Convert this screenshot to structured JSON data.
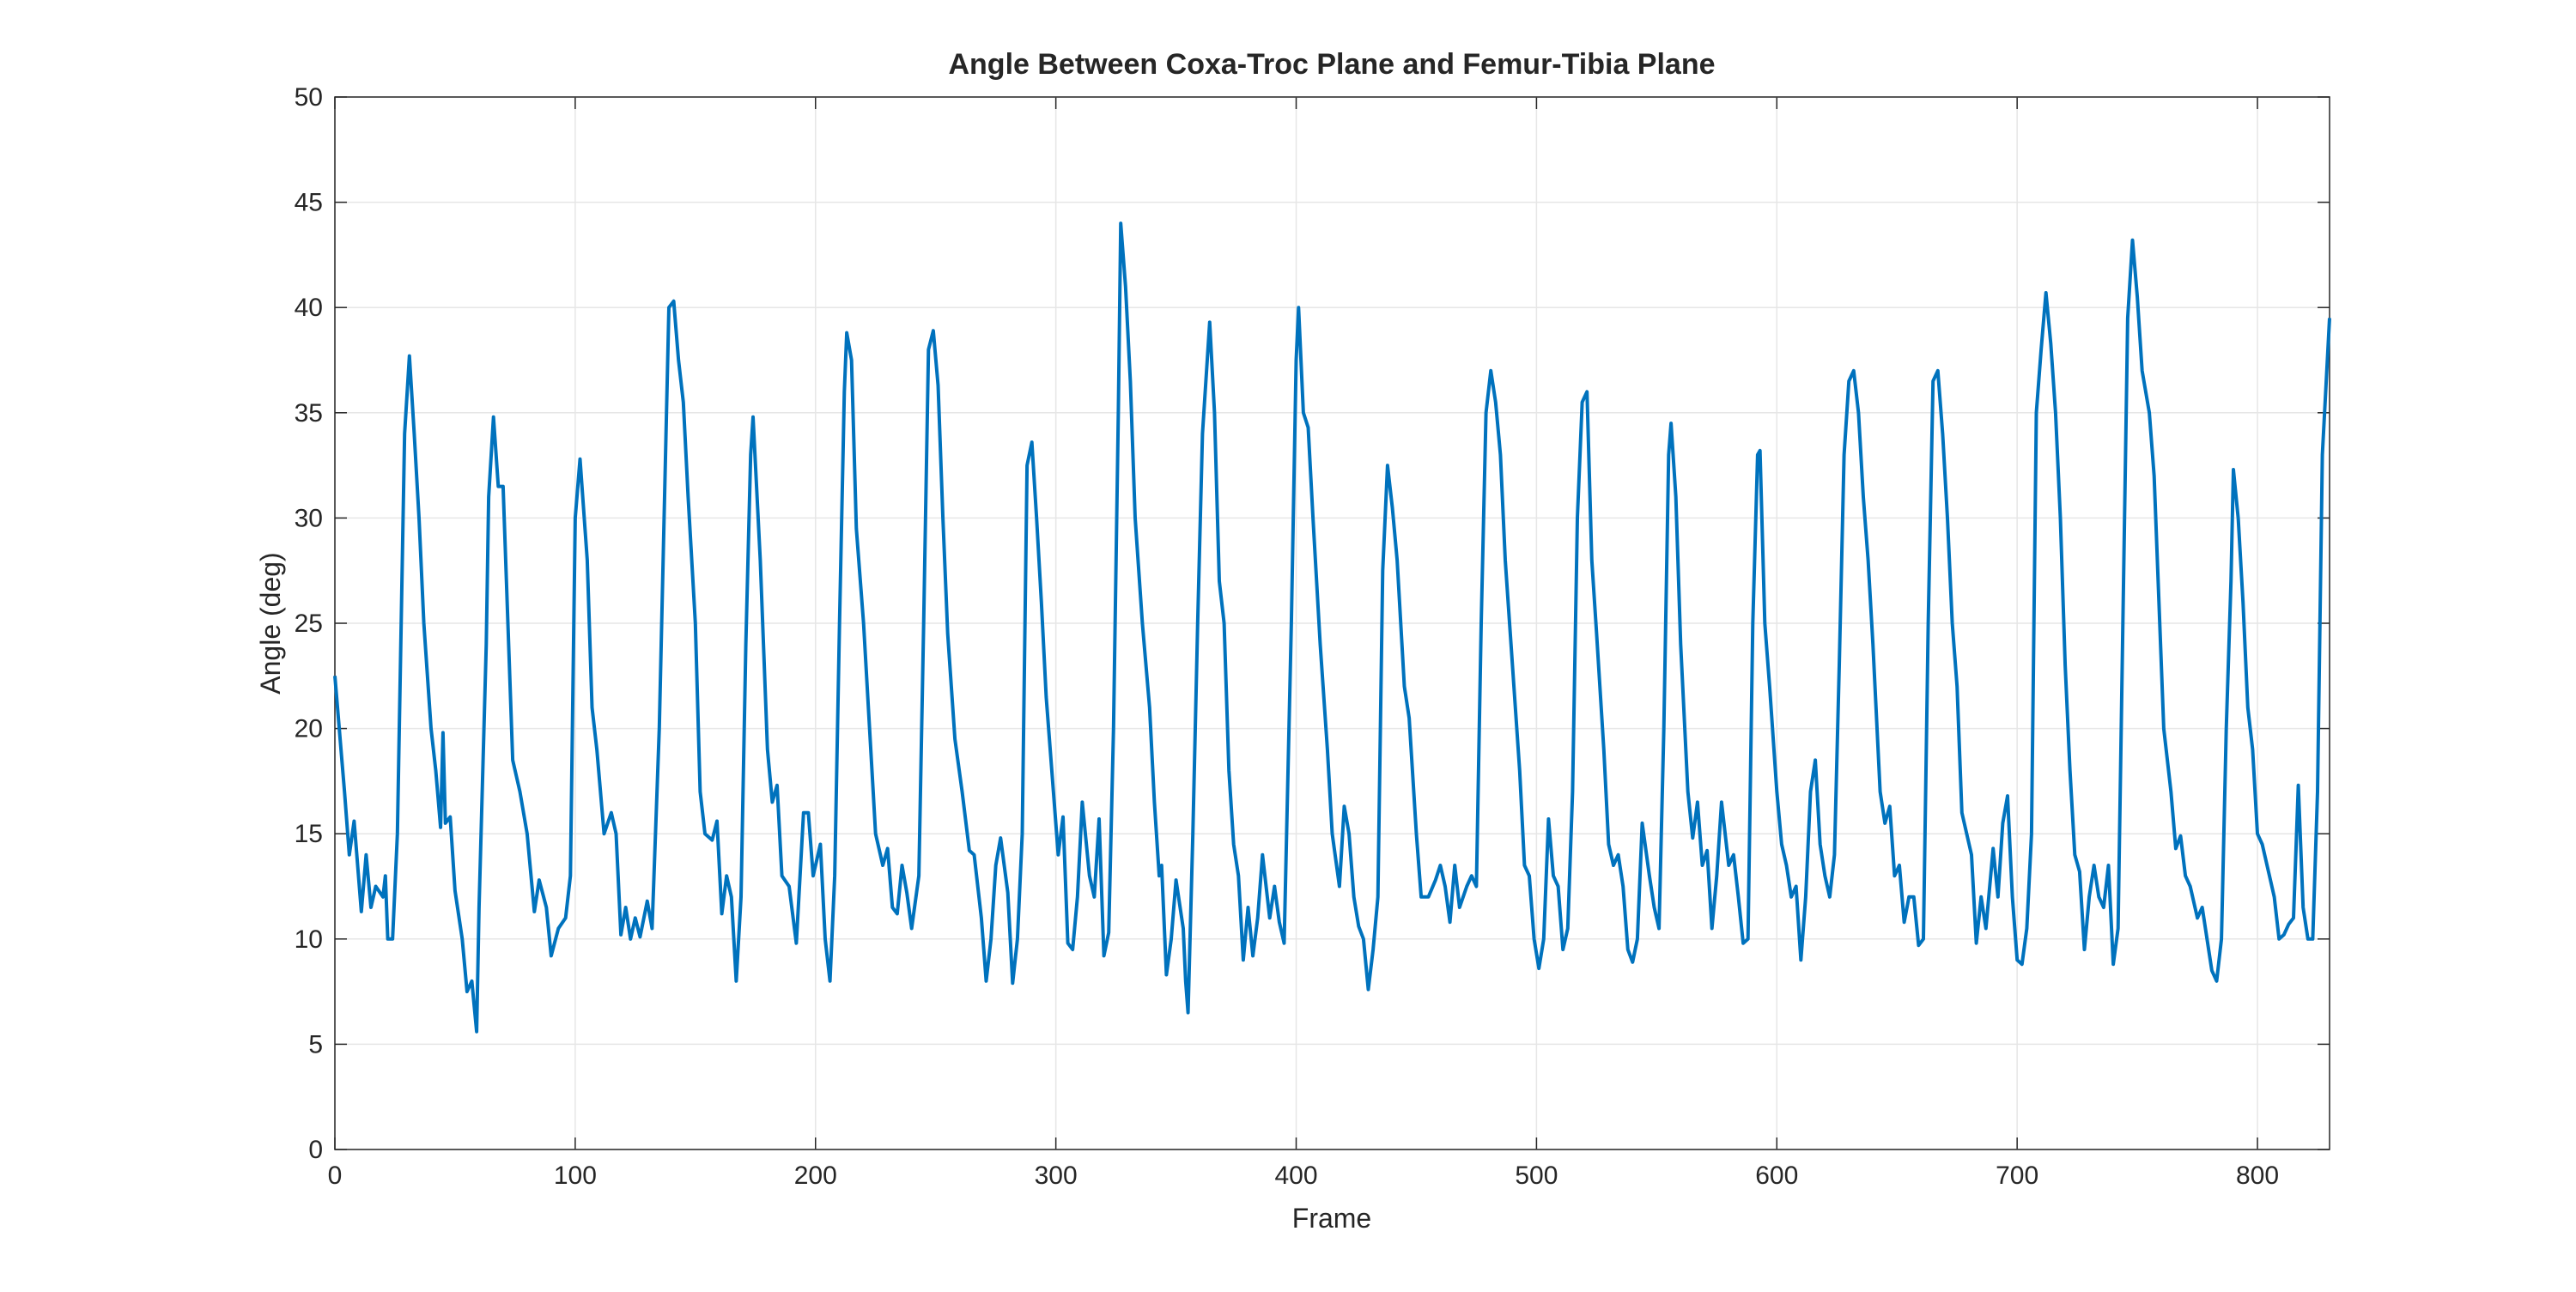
{
  "chart_data": {
    "type": "line",
    "title": "Angle Between Coxa-Troc Plane and Femur-Tibia Plane",
    "x_label": "Frame",
    "y_label": "Angle (deg)",
    "xlim": [
      0,
      830
    ],
    "ylim": [
      0,
      50
    ],
    "xticks": [
      0,
      100,
      200,
      300,
      400,
      500,
      600,
      700,
      800
    ],
    "yticks": [
      0,
      5,
      10,
      15,
      20,
      25,
      30,
      35,
      40,
      45,
      50
    ],
    "grid": true,
    "series": [
      {
        "color": "#0072BD",
        "x": [
          0,
          4,
          6,
          8,
          11,
          13,
          15,
          17,
          20,
          21,
          22,
          24,
          26,
          29,
          31,
          33,
          35,
          37,
          40,
          42,
          44,
          45,
          46,
          48,
          50,
          53,
          55,
          57,
          59,
          60,
          63,
          64,
          66,
          68,
          70,
          72,
          74,
          77,
          80,
          83,
          85,
          88,
          90,
          93,
          96,
          98,
          100,
          102,
          105,
          107,
          109,
          112,
          115,
          117,
          119,
          121,
          123,
          125,
          127,
          130,
          132,
          135,
          137,
          139,
          141,
          143,
          145,
          147,
          150,
          152,
          154,
          157,
          159,
          161,
          163,
          165,
          167,
          169,
          171,
          173,
          174,
          177,
          180,
          182,
          184,
          186,
          189,
          192,
          195,
          197,
          199,
          202,
          204,
          206,
          208,
          210,
          212,
          213,
          215,
          217,
          220,
          223,
          225,
          228,
          230,
          232,
          234,
          236,
          238,
          240,
          243,
          245,
          247,
          249,
          251,
          253,
          255,
          258,
          261,
          264,
          266,
          269,
          271,
          273,
          275,
          277,
          280,
          282,
          284,
          286,
          288,
          290,
          292,
          294,
          296,
          299,
          301,
          303,
          305,
          307,
          309,
          311,
          314,
          316,
          318,
          320,
          322,
          324,
          326,
          327,
          329,
          331,
          333,
          336,
          339,
          341,
          343,
          344,
          346,
          348,
          350,
          353,
          354,
          355,
          357,
          359,
          361,
          364,
          366,
          368,
          370,
          372,
          374,
          376,
          378,
          380,
          382,
          384,
          386,
          389,
          391,
          393,
          395,
          398,
          400,
          401,
          403,
          405,
          407,
          410,
          413,
          415,
          418,
          420,
          422,
          424,
          426,
          428,
          430,
          432,
          434,
          436,
          438,
          440,
          442,
          445,
          447,
          450,
          452,
          455,
          458,
          460,
          462,
          464,
          466,
          468,
          471,
          473,
          475,
          477,
          479,
          481,
          483,
          485,
          487,
          490,
          493,
          495,
          497,
          499,
          501,
          503,
          505,
          507,
          509,
          511,
          513,
          515,
          517,
          519,
          521,
          523,
          525,
          528,
          530,
          532,
          534,
          536,
          538,
          540,
          542,
          544,
          547,
          549,
          551,
          553,
          555,
          556,
          558,
          560,
          563,
          565,
          567,
          569,
          571,
          573,
          575,
          577,
          580,
          582,
          584,
          586,
          588,
          590,
          592,
          593,
          595,
          597,
          600,
          602,
          604,
          606,
          608,
          610,
          612,
          614,
          616,
          618,
          620,
          622,
          624,
          626,
          628,
          630,
          632,
          634,
          636,
          638,
          640,
          643,
          645,
          647,
          649,
          651,
          653,
          655,
          657,
          659,
          661,
          663,
          665,
          667,
          669,
          671,
          673,
          675,
          677,
          679,
          681,
          683,
          685,
          687,
          690,
          692,
          694,
          696,
          698,
          700,
          702,
          704,
          706,
          708,
          710,
          712,
          714,
          716,
          718,
          720,
          722,
          724,
          726,
          728,
          730,
          732,
          734,
          736,
          738,
          740,
          742,
          744,
          746,
          748,
          750,
          752,
          755,
          757,
          759,
          761,
          764,
          766,
          768,
          770,
          772,
          775,
          777,
          779,
          781,
          783,
          785,
          787,
          789,
          790,
          792,
          794,
          796,
          798,
          800,
          802,
          805,
          807,
          809,
          811,
          813,
          815,
          817,
          819,
          821,
          823,
          825,
          827,
          830
        ],
        "values": [
          22.5,
          17,
          14,
          15.6,
          11.3,
          14,
          11.5,
          12.5,
          12,
          13,
          10,
          10,
          15,
          34,
          37.7,
          34,
          30,
          25,
          20,
          18,
          15.3,
          19.8,
          15.5,
          15.8,
          12.3,
          10,
          7.5,
          8,
          5.6,
          11.5,
          24,
          31,
          34.8,
          31.5,
          31.5,
          25,
          18.5,
          17,
          15,
          11.3,
          12.8,
          11.5,
          9.2,
          10.5,
          11,
          13,
          30,
          32.8,
          28,
          21,
          19,
          15,
          16,
          15,
          10.2,
          11.5,
          10,
          11,
          10.1,
          11.8,
          10.5,
          20,
          30,
          40,
          40.3,
          37.5,
          35.5,
          31,
          25,
          17,
          15,
          14.7,
          15.6,
          11.2,
          13,
          12,
          8,
          12,
          24,
          33,
          34.8,
          28,
          19,
          16.5,
          17.3,
          13,
          12.5,
          9.8,
          16,
          16,
          13,
          14.5,
          10,
          8,
          13,
          25,
          36,
          38.8,
          37.5,
          29.5,
          25,
          19,
          15,
          13.5,
          14.3,
          11.5,
          11.2,
          13.5,
          12.2,
          10.5,
          13,
          25,
          38,
          38.9,
          36.3,
          30,
          24.5,
          19.5,
          17,
          14.2,
          14,
          11,
          8,
          10,
          13.5,
          14.8,
          12.2,
          7.9,
          10,
          15,
          32.5,
          33.6,
          30,
          26,
          21.5,
          17,
          14,
          15.8,
          9.8,
          9.5,
          12,
          16.5,
          13,
          12,
          15.7,
          9.2,
          10.3,
          20,
          35,
          44,
          41,
          36.5,
          30,
          25,
          21,
          16.5,
          13,
          13.5,
          8.3,
          10,
          12.8,
          10.5,
          8,
          6.5,
          15,
          25,
          34,
          39.3,
          35,
          27,
          25,
          18,
          14.5,
          13,
          9,
          11.5,
          9.2,
          11,
          14,
          11,
          12.5,
          10.8,
          9.8,
          25,
          37.5,
          40,
          35,
          34.3,
          30,
          24,
          19,
          15,
          12.5,
          16.3,
          15,
          12,
          10.6,
          10,
          7.6,
          9.5,
          12,
          27.5,
          32.5,
          30.5,
          28,
          22,
          20.5,
          15,
          12,
          12,
          12.8,
          13.5,
          12.5,
          10.8,
          13.5,
          11.5,
          12.5,
          13,
          12.5,
          25,
          35,
          37,
          35.5,
          33,
          28,
          23,
          18,
          13.5,
          13,
          10,
          8.6,
          10,
          15.7,
          13,
          12.5,
          9.5,
          10.5,
          17,
          30,
          35.5,
          36,
          28,
          24.5,
          19,
          14.5,
          13.5,
          14,
          12.5,
          9.5,
          8.9,
          10,
          15.5,
          13,
          11.5,
          10.5,
          20,
          33,
          34.5,
          31,
          24,
          17,
          14.8,
          16.5,
          13.5,
          14.2,
          10.5,
          13,
          16.5,
          13.5,
          14,
          12,
          9.8,
          10,
          25,
          33,
          33.2,
          25,
          22,
          17,
          14.5,
          13.5,
          12,
          12.5,
          9,
          12,
          17,
          18.5,
          14.5,
          13,
          12,
          14,
          23,
          33,
          36.5,
          37,
          35,
          31,
          28,
          24,
          17,
          15.5,
          16.3,
          13,
          13.5,
          10.8,
          12,
          12,
          9.7,
          10,
          25,
          36.5,
          37,
          34,
          30,
          25,
          22,
          16,
          15,
          14,
          9.8,
          12,
          10.5,
          14.3,
          12,
          15.5,
          16.8,
          12,
          9,
          8.8,
          10.5,
          15,
          35,
          38,
          40.7,
          38.3,
          35,
          30,
          23,
          18,
          14,
          13.2,
          9.5,
          12,
          13.5,
          12,
          11.5,
          13.5,
          8.8,
          10.5,
          25,
          39.5,
          43.2,
          40.5,
          37,
          35,
          32,
          26,
          20,
          17,
          14.3,
          14.9,
          13,
          12.5,
          11,
          11.5,
          10,
          8.5,
          8,
          10,
          20,
          27,
          32.3,
          30,
          26,
          21,
          19,
          15,
          14.5,
          13,
          12,
          10,
          10.2,
          10.7,
          11,
          17.3,
          11.5,
          10,
          10,
          17,
          33,
          39.5
        ]
      }
    ]
  }
}
